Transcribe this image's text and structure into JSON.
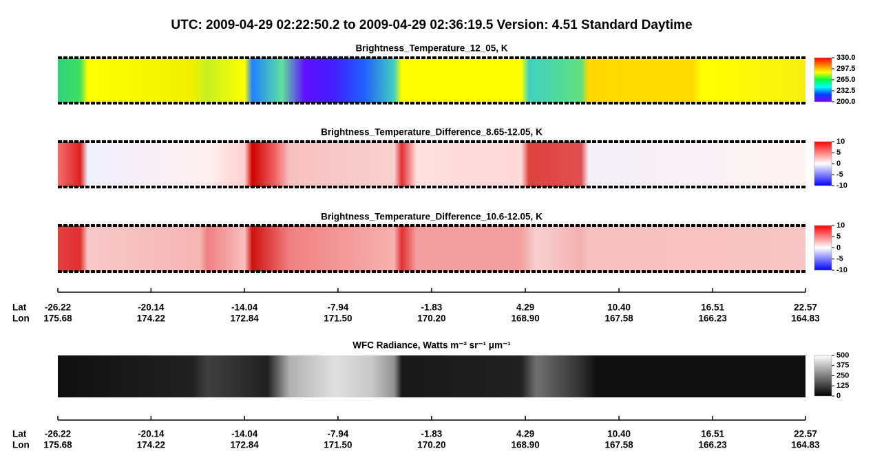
{
  "title": "UTC:  2009-04-29   02:22:50.2  to  2009-04-29   02:36:19.5    Version: 4.51  Standard Daytime",
  "chart_data": [
    {
      "type": "heatmap",
      "title": "Brightness_Temperature_12_05, K",
      "zlim": [
        200,
        330
      ],
      "zticks": [
        {
          "value": 200,
          "label": "200.0"
        },
        232.5,
        {
          "value": 265,
          "label": "265.0"
        },
        297.5,
        {
          "value": 330,
          "label": "330.0"
        }
      ],
      "colormap": [
        "#8000ff",
        "#0040ff",
        "#00ffff",
        "#00ff40",
        "#ffff00",
        "#ff8000",
        "#ff0000"
      ]
    },
    {
      "type": "heatmap",
      "title": "Brightness_Temperature_Difference_8.65-12.05, K",
      "zlim": [
        -10,
        10
      ],
      "zticks": [
        -10,
        -5,
        0,
        5,
        10
      ],
      "colormap": [
        "#0000ff",
        "#ffffff",
        "#ff0000"
      ]
    },
    {
      "type": "heatmap",
      "title": "Brightness_Temperature_Difference_10.6-12.05, K",
      "zlim": [
        -10,
        10
      ],
      "zticks": [
        -10,
        -5,
        0,
        5,
        10
      ],
      "colormap": [
        "#0000ff",
        "#ffffff",
        "#ff0000"
      ]
    },
    {
      "type": "heatmap",
      "title": "WFC Radiance, Watts m⁻² sr⁻¹ μm⁻¹",
      "zlim": [
        0,
        500
      ],
      "zticks": [
        0,
        125,
        250,
        375,
        500
      ],
      "colormap": [
        "#000000",
        "#ffffff"
      ]
    }
  ],
  "axes": [
    {
      "xlim": [
        -26.22,
        22.57
      ],
      "rows": [
        {
          "label": "Lat",
          "ticks": [
            -26.22,
            -20.14,
            -14.04,
            -7.94,
            -1.83,
            4.29,
            {
              "value": 10.4,
              "label": "10.40"
            },
            16.51,
            22.57
          ]
        },
        {
          "label": "Lon",
          "ticks": [
            175.68,
            174.22,
            172.84,
            {
              "value": 171.5,
              "label": "171.50"
            },
            {
              "value": 170.2,
              "label": "170.20"
            },
            {
              "value": 168.9,
              "label": "168.90"
            },
            167.58,
            166.23,
            164.83
          ]
        }
      ]
    },
    {
      "xlim": [
        -26.22,
        22.57
      ],
      "rows": [
        {
          "label": "Lat",
          "ticks": [
            -26.22,
            -20.14,
            -14.04,
            -7.94,
            -1.83,
            4.29,
            {
              "value": 10.4,
              "label": "10.40"
            },
            16.51,
            22.57
          ]
        },
        {
          "label": "Lon",
          "ticks": [
            175.68,
            174.22,
            172.84,
            {
              "value": 171.5,
              "label": "171.50"
            },
            {
              "value": 170.2,
              "label": "170.20"
            },
            {
              "value": 168.9,
              "label": "168.90"
            },
            167.58,
            166.23,
            164.83
          ]
        }
      ]
    }
  ]
}
